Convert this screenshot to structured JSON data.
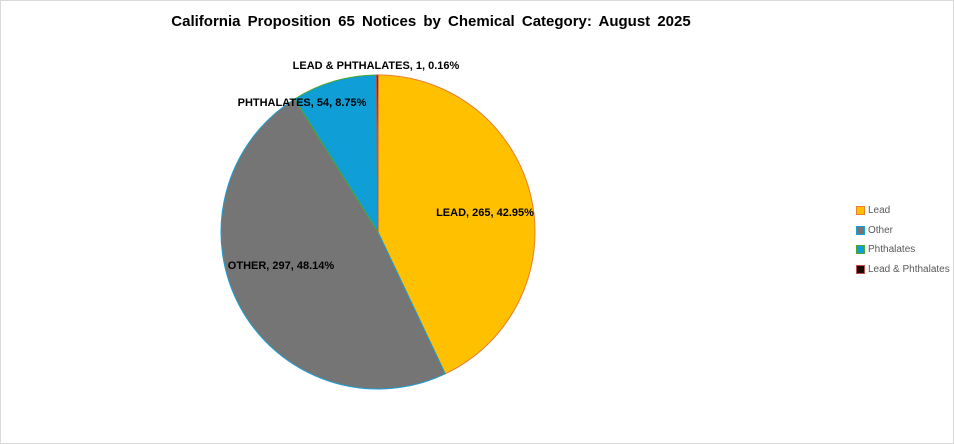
{
  "chart_data": {
    "type": "pie",
    "title": "California Proposition 65 Notices by Chemical Category: August 2025",
    "slices": [
      {
        "name": "Lead",
        "label": "LEAD, 265, 42.95%",
        "value": 265,
        "percent": 42.95,
        "fill": "#FFC000",
        "stroke": "#ED7D31"
      },
      {
        "name": "Other",
        "label": "OTHER, 297, 48.14%",
        "value": 297,
        "percent": 48.14,
        "fill": "#757575",
        "stroke": "#1A9FD6"
      },
      {
        "name": "Phthalates",
        "label": "PHTHALATES, 54, 8.75%",
        "value": 54,
        "percent": 8.75,
        "fill": "#0F9ED5",
        "stroke": "#4EA72E"
      },
      {
        "name": "Lead & Phthalates",
        "label": "LEAD & PHTHALATES, 1, 0.16%",
        "value": 1,
        "percent": 0.16,
        "fill": "#1a0a00",
        "stroke": "#C0504D"
      }
    ],
    "legend_placement": "right",
    "start_angle": "12 o'clock, clockwise"
  }
}
